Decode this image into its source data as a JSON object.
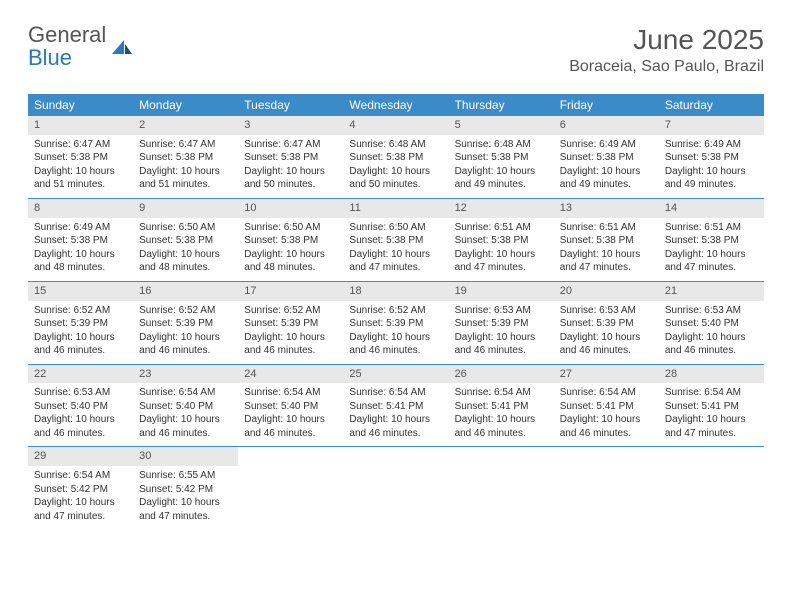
{
  "brand": {
    "name1": "General",
    "name2": "Blue"
  },
  "title": "June 2025",
  "location": "Boraceia, Sao Paulo, Brazil",
  "colors": {
    "header_bg": "#3b8bc9",
    "header_text": "#ffffff",
    "daynum_bg": "#e8e8e8",
    "rule": "#3b8bc9",
    "brand_blue": "#2f77bc",
    "body_text": "#333333",
    "title_text": "#555555",
    "page_bg": "#ffffff"
  },
  "day_headers": [
    "Sunday",
    "Monday",
    "Tuesday",
    "Wednesday",
    "Thursday",
    "Friday",
    "Saturday"
  ],
  "weeks": [
    [
      {
        "n": "1",
        "sr": "6:47 AM",
        "ss": "5:38 PM",
        "dl": "10 hours and 51 minutes."
      },
      {
        "n": "2",
        "sr": "6:47 AM",
        "ss": "5:38 PM",
        "dl": "10 hours and 51 minutes."
      },
      {
        "n": "3",
        "sr": "6:47 AM",
        "ss": "5:38 PM",
        "dl": "10 hours and 50 minutes."
      },
      {
        "n": "4",
        "sr": "6:48 AM",
        "ss": "5:38 PM",
        "dl": "10 hours and 50 minutes."
      },
      {
        "n": "5",
        "sr": "6:48 AM",
        "ss": "5:38 PM",
        "dl": "10 hours and 49 minutes."
      },
      {
        "n": "6",
        "sr": "6:49 AM",
        "ss": "5:38 PM",
        "dl": "10 hours and 49 minutes."
      },
      {
        "n": "7",
        "sr": "6:49 AM",
        "ss": "5:38 PM",
        "dl": "10 hours and 49 minutes."
      }
    ],
    [
      {
        "n": "8",
        "sr": "6:49 AM",
        "ss": "5:38 PM",
        "dl": "10 hours and 48 minutes."
      },
      {
        "n": "9",
        "sr": "6:50 AM",
        "ss": "5:38 PM",
        "dl": "10 hours and 48 minutes."
      },
      {
        "n": "10",
        "sr": "6:50 AM",
        "ss": "5:38 PM",
        "dl": "10 hours and 48 minutes."
      },
      {
        "n": "11",
        "sr": "6:50 AM",
        "ss": "5:38 PM",
        "dl": "10 hours and 47 minutes."
      },
      {
        "n": "12",
        "sr": "6:51 AM",
        "ss": "5:38 PM",
        "dl": "10 hours and 47 minutes."
      },
      {
        "n": "13",
        "sr": "6:51 AM",
        "ss": "5:38 PM",
        "dl": "10 hours and 47 minutes."
      },
      {
        "n": "14",
        "sr": "6:51 AM",
        "ss": "5:38 PM",
        "dl": "10 hours and 47 minutes."
      }
    ],
    [
      {
        "n": "15",
        "sr": "6:52 AM",
        "ss": "5:39 PM",
        "dl": "10 hours and 46 minutes."
      },
      {
        "n": "16",
        "sr": "6:52 AM",
        "ss": "5:39 PM",
        "dl": "10 hours and 46 minutes."
      },
      {
        "n": "17",
        "sr": "6:52 AM",
        "ss": "5:39 PM",
        "dl": "10 hours and 46 minutes."
      },
      {
        "n": "18",
        "sr": "6:52 AM",
        "ss": "5:39 PM",
        "dl": "10 hours and 46 minutes."
      },
      {
        "n": "19",
        "sr": "6:53 AM",
        "ss": "5:39 PM",
        "dl": "10 hours and 46 minutes."
      },
      {
        "n": "20",
        "sr": "6:53 AM",
        "ss": "5:39 PM",
        "dl": "10 hours and 46 minutes."
      },
      {
        "n": "21",
        "sr": "6:53 AM",
        "ss": "5:40 PM",
        "dl": "10 hours and 46 minutes."
      }
    ],
    [
      {
        "n": "22",
        "sr": "6:53 AM",
        "ss": "5:40 PM",
        "dl": "10 hours and 46 minutes."
      },
      {
        "n": "23",
        "sr": "6:54 AM",
        "ss": "5:40 PM",
        "dl": "10 hours and 46 minutes."
      },
      {
        "n": "24",
        "sr": "6:54 AM",
        "ss": "5:40 PM",
        "dl": "10 hours and 46 minutes."
      },
      {
        "n": "25",
        "sr": "6:54 AM",
        "ss": "5:41 PM",
        "dl": "10 hours and 46 minutes."
      },
      {
        "n": "26",
        "sr": "6:54 AM",
        "ss": "5:41 PM",
        "dl": "10 hours and 46 minutes."
      },
      {
        "n": "27",
        "sr": "6:54 AM",
        "ss": "5:41 PM",
        "dl": "10 hours and 46 minutes."
      },
      {
        "n": "28",
        "sr": "6:54 AM",
        "ss": "5:41 PM",
        "dl": "10 hours and 47 minutes."
      }
    ],
    [
      {
        "n": "29",
        "sr": "6:54 AM",
        "ss": "5:42 PM",
        "dl": "10 hours and 47 minutes."
      },
      {
        "n": "30",
        "sr": "6:55 AM",
        "ss": "5:42 PM",
        "dl": "10 hours and 47 minutes."
      },
      null,
      null,
      null,
      null,
      null
    ]
  ],
  "labels": {
    "sunrise": "Sunrise:",
    "sunset": "Sunset:",
    "daylight": "Daylight:"
  }
}
